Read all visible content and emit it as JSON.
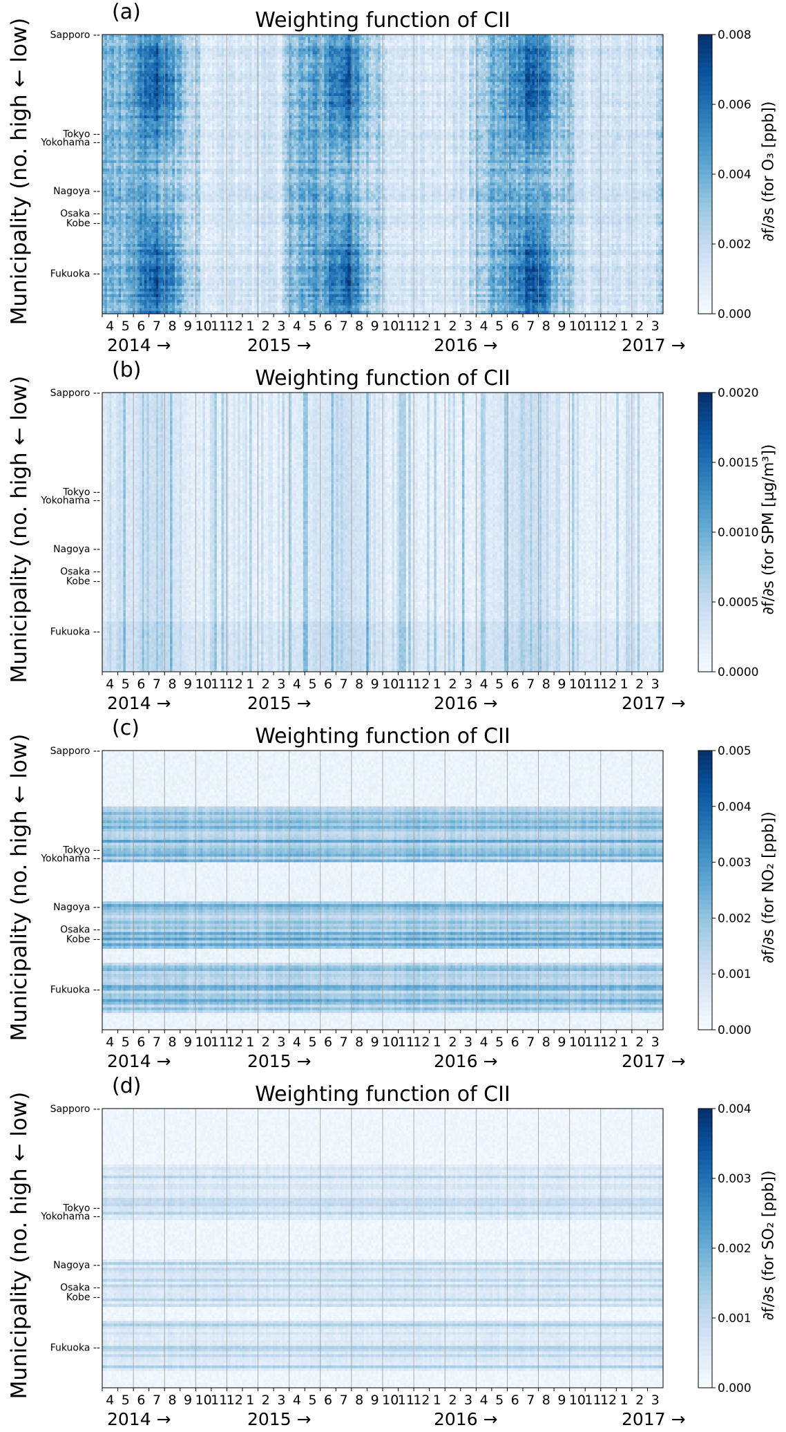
{
  "chart_data": [
    {
      "type": "heatmap",
      "panel_label": "(a)",
      "title": "Weighting function of CII",
      "ylabel": "Municipality (no. high ← low)",
      "colorbar_label": "∂f/∂s (for O₃ [ppb])",
      "colorbar_ticks": [
        "0.000",
        "0.002",
        "0.004",
        "0.006",
        "0.008"
      ],
      "vlim": [
        0,
        0.008
      ],
      "colormap": "Blues",
      "x_months": [
        "4",
        "5",
        "6",
        "7",
        "8",
        "9",
        "10",
        "11",
        "12",
        "1",
        "2",
        "3",
        "4",
        "5",
        "6",
        "7",
        "8",
        "9",
        "10",
        "11",
        "12",
        "1",
        "2",
        "3",
        "4",
        "5",
        "6",
        "7",
        "8",
        "9",
        "10",
        "11",
        "12",
        "1",
        "2",
        "3"
      ],
      "x_years": [
        "2014 →",
        "2015 →",
        "2016 →",
        "2017 →"
      ],
      "y_cities": [
        "Sapporo --",
        "Tokyo --",
        "Yokohama --",
        "Nagoya --",
        "Osaka --",
        "Kobe --",
        "Fukuoka --"
      ],
      "pattern": "temporal",
      "summary": "Strong values throughout, peaks around July-August each year; lighter in winter months"
    },
    {
      "type": "heatmap",
      "panel_label": "(b)",
      "title": "Weighting function of CII",
      "ylabel": "Municipality (no. high ← low)",
      "colorbar_label": "∂f/∂s (for SPM [μg/m³])",
      "colorbar_ticks": [
        "0.0000",
        "0.0005",
        "0.0010",
        "0.0015",
        "0.0020"
      ],
      "vlim": [
        0,
        0.002
      ],
      "colormap": "Blues",
      "x_months": [
        "4",
        "5",
        "6",
        "7",
        "8",
        "9",
        "10",
        "11",
        "12",
        "1",
        "2",
        "3",
        "4",
        "5",
        "6",
        "7",
        "8",
        "9",
        "10",
        "11",
        "12",
        "1",
        "2",
        "3",
        "4",
        "5",
        "6",
        "7",
        "8",
        "9",
        "10",
        "11",
        "12",
        "1",
        "2",
        "3"
      ],
      "x_years": [
        "2014 →",
        "2015 →",
        "2016 →",
        "2017 →"
      ],
      "y_cities": [
        "Sapporo --",
        "Tokyo --",
        "Yokohama --",
        "Nagoya --",
        "Osaka --",
        "Kobe --",
        "Fukuoka --"
      ],
      "pattern": "sparse-temporal",
      "summary": "Light overall with scattered vertical streaks, concentrated in summer"
    },
    {
      "type": "heatmap",
      "panel_label": "(c)",
      "title": "Weighting function of CII",
      "ylabel": "Municipality (no. high ← low)",
      "colorbar_label": "∂f/∂s (for NO₂ [ppb])",
      "colorbar_ticks": [
        "0.000",
        "0.001",
        "0.002",
        "0.003",
        "0.004",
        "0.005"
      ],
      "vlim": [
        0,
        0.005
      ],
      "colormap": "Blues",
      "x_months": [
        "4",
        "5",
        "6",
        "7",
        "8",
        "9",
        "10",
        "11",
        "12",
        "1",
        "2",
        "3",
        "4",
        "5",
        "6",
        "7",
        "8",
        "9",
        "10",
        "11",
        "12",
        "1",
        "2",
        "3",
        "4",
        "5",
        "6",
        "7",
        "8",
        "9",
        "10",
        "11",
        "12",
        "1",
        "2",
        "3"
      ],
      "x_years": [
        "2014 →",
        "2015 →",
        "2016 →",
        "2017 →"
      ],
      "y_cities": [
        "Sapporo --",
        "Tokyo --",
        "Yokohama --",
        "Nagoya --",
        "Osaka --",
        "Kobe --",
        "Fukuoka --"
      ],
      "pattern": "spatial",
      "summary": "Horizontal bands at urban municipalities (Tokyo/Yokohama, Nagoya, Osaka/Kobe, Fukuoka)"
    },
    {
      "type": "heatmap",
      "panel_label": "(d)",
      "title": "Weighting function of CII",
      "ylabel": "Municipality (no. high ← low)",
      "colorbar_label": "∂f/∂s (for SO₂ [ppb])",
      "colorbar_ticks": [
        "0.000",
        "0.001",
        "0.002",
        "0.003",
        "0.004"
      ],
      "vlim": [
        0,
        0.004
      ],
      "colormap": "Blues",
      "x_months": [
        "4",
        "5",
        "6",
        "7",
        "8",
        "9",
        "10",
        "11",
        "12",
        "1",
        "2",
        "3",
        "4",
        "5",
        "6",
        "7",
        "8",
        "9",
        "10",
        "11",
        "12",
        "1",
        "2",
        "3",
        "4",
        "5",
        "6",
        "7",
        "8",
        "9",
        "10",
        "11",
        "12",
        "1",
        "2",
        "3"
      ],
      "x_years": [
        "2014 →",
        "2015 →",
        "2016 →",
        "2017 →"
      ],
      "y_cities": [
        "Sapporo --",
        "Tokyo --",
        "Yokohama --",
        "Nagoya --",
        "Osaka --",
        "Kobe --",
        "Fukuoka --"
      ],
      "pattern": "spatial-faint",
      "summary": "Very light overall, faint horizontal bands at urban municipalities"
    }
  ],
  "colors": {
    "cmap_low": "#f7fbff",
    "cmap_high": "#08306b",
    "axis": "#000000",
    "gridline": "#9a9a9a"
  }
}
